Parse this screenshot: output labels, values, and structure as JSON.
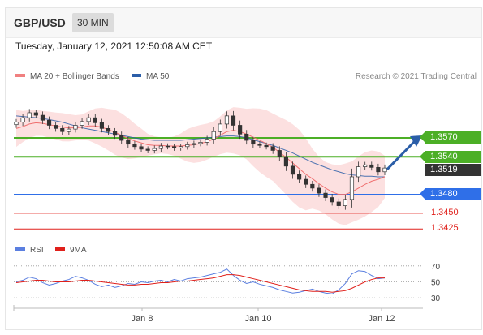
{
  "header": {
    "pair": "GBP/USD",
    "timeframe": "30 MIN"
  },
  "timestamp": "Tuesday, January 12, 2021 12:50:08 AM CET",
  "legend": {
    "bollinger": "MA 20 + Bollinger Bands",
    "ma50": "MA 50",
    "credit": "Research © 2021 Trading Central"
  },
  "levels": {
    "l1": {
      "label": "1.3570",
      "value": 1.357,
      "color": "#4caf26"
    },
    "l2": {
      "label": "1.3540",
      "value": 1.354,
      "color": "#4caf26"
    },
    "l3": {
      "label": "1.3519",
      "value": 1.3519,
      "color": "#333333"
    },
    "l4": {
      "label": "1.3480",
      "value": 1.348,
      "color": "#2f6fe8"
    },
    "l5": {
      "label": "1.3450",
      "value": 1.345,
      "color": "#e0201b"
    },
    "l6": {
      "label": "1.3425",
      "value": 1.3425,
      "color": "#e0201b"
    }
  },
  "rsi_panel": {
    "rsi_label": "RSI",
    "ma_label": "9MA",
    "ticks": [
      "70",
      "50",
      "30"
    ]
  },
  "x_ticks": [
    "Jan 8",
    "Jan 10",
    "Jan 12"
  ],
  "chart_data": [
    {
      "type": "candlestick",
      "title": "GBP/USD 30 MIN",
      "ylim": [
        1.3415,
        1.365
      ],
      "series": [
        {
          "name": "Price",
          "values": [
            1.3595,
            1.3602,
            1.361,
            1.3606,
            1.3598,
            1.359,
            1.3585,
            1.358,
            1.3584,
            1.359,
            1.3596,
            1.3602,
            1.3594,
            1.3585,
            1.358,
            1.3574,
            1.3566,
            1.356,
            1.3556,
            1.3552,
            1.355,
            1.3553,
            1.3557,
            1.3556,
            1.3554,
            1.3556,
            1.3559,
            1.3561,
            1.3563,
            1.3568,
            1.358,
            1.3592,
            1.3605,
            1.359,
            1.3576,
            1.3566,
            1.356,
            1.3558,
            1.3556,
            1.355,
            1.354,
            1.3525,
            1.3512,
            1.3504,
            1.3496,
            1.349,
            1.3482,
            1.3475,
            1.3468,
            1.3462,
            1.3472,
            1.3508,
            1.3524,
            1.3527,
            1.3523,
            1.3516,
            1.3522
          ]
        },
        {
          "name": "MA 20",
          "values": [
            1.3585,
            1.3588,
            1.3592,
            1.3594,
            1.3593,
            1.3591,
            1.3589,
            1.3587,
            1.3586,
            1.3586,
            1.3587,
            1.3589,
            1.3589,
            1.3587,
            1.3583,
            1.3579,
            1.3574,
            1.3569,
            1.3565,
            1.3562,
            1.3559,
            1.3558,
            1.3558,
            1.3557,
            1.3557,
            1.3557,
            1.3558,
            1.3559,
            1.3561,
            1.3564,
            1.3568,
            1.3574,
            1.358,
            1.3582,
            1.358,
            1.3576,
            1.3571,
            1.3566,
            1.3561,
            1.3555,
            1.3547,
            1.3539,
            1.353,
            1.3521,
            1.3512,
            1.3505,
            1.3497,
            1.349,
            1.3484,
            1.348,
            1.348,
            1.3484,
            1.349,
            1.3496,
            1.3501,
            1.3504,
            1.3508
          ]
        },
        {
          "name": "MA 50",
          "values": [
            1.3605,
            1.3604,
            1.3603,
            1.3602,
            1.3601,
            1.3599,
            1.3597,
            1.3595,
            1.3592,
            1.3589,
            1.3586,
            1.3584,
            1.3582,
            1.358,
            1.3578,
            1.3576,
            1.3574,
            1.3572,
            1.357,
            1.3568,
            1.3567,
            1.3566,
            1.3566,
            1.3566,
            1.3566,
            1.3566,
            1.3567,
            1.3568,
            1.3569,
            1.357,
            1.3571,
            1.3572,
            1.3573,
            1.3573,
            1.3572,
            1.357,
            1.3567,
            1.3564,
            1.3561,
            1.3558,
            1.3554,
            1.355,
            1.3546,
            1.3541,
            1.3536,
            1.3531,
            1.3527,
            1.3523,
            1.3519,
            1.3516,
            1.3513,
            1.3511,
            1.351,
            1.3509,
            1.3509,
            1.3508,
            1.3508
          ]
        }
      ],
      "projection": {
        "from": 1.352,
        "to": 1.357
      }
    },
    {
      "type": "line",
      "title": "RSI",
      "ylim": [
        20,
        80
      ],
      "yticks": [
        70,
        50,
        30
      ],
      "series": [
        {
          "name": "RSI",
          "values": [
            50,
            52,
            56,
            54,
            49,
            46,
            48,
            51,
            53,
            57,
            55,
            52,
            47,
            44,
            46,
            43,
            45,
            48,
            47,
            50,
            49,
            51,
            52,
            50,
            53,
            51,
            54,
            55,
            56,
            58,
            60,
            62,
            66,
            58,
            52,
            48,
            50,
            47,
            45,
            43,
            40,
            38,
            36,
            37,
            39,
            41,
            38,
            36,
            35,
            40,
            48,
            60,
            64,
            63,
            58,
            54,
            55
          ]
        },
        {
          "name": "9MA",
          "values": [
            49,
            50,
            51,
            52,
            52,
            51,
            50,
            50,
            50,
            51,
            52,
            52,
            51,
            50,
            49,
            48,
            47,
            46,
            46,
            47,
            47,
            48,
            49,
            49,
            50,
            51,
            51,
            52,
            53,
            54,
            55,
            57,
            59,
            59,
            58,
            56,
            54,
            52,
            50,
            48,
            46,
            44,
            42,
            40,
            39,
            38,
            38,
            38,
            37,
            38,
            39,
            42,
            46,
            50,
            53,
            55,
            55
          ]
        }
      ]
    }
  ]
}
